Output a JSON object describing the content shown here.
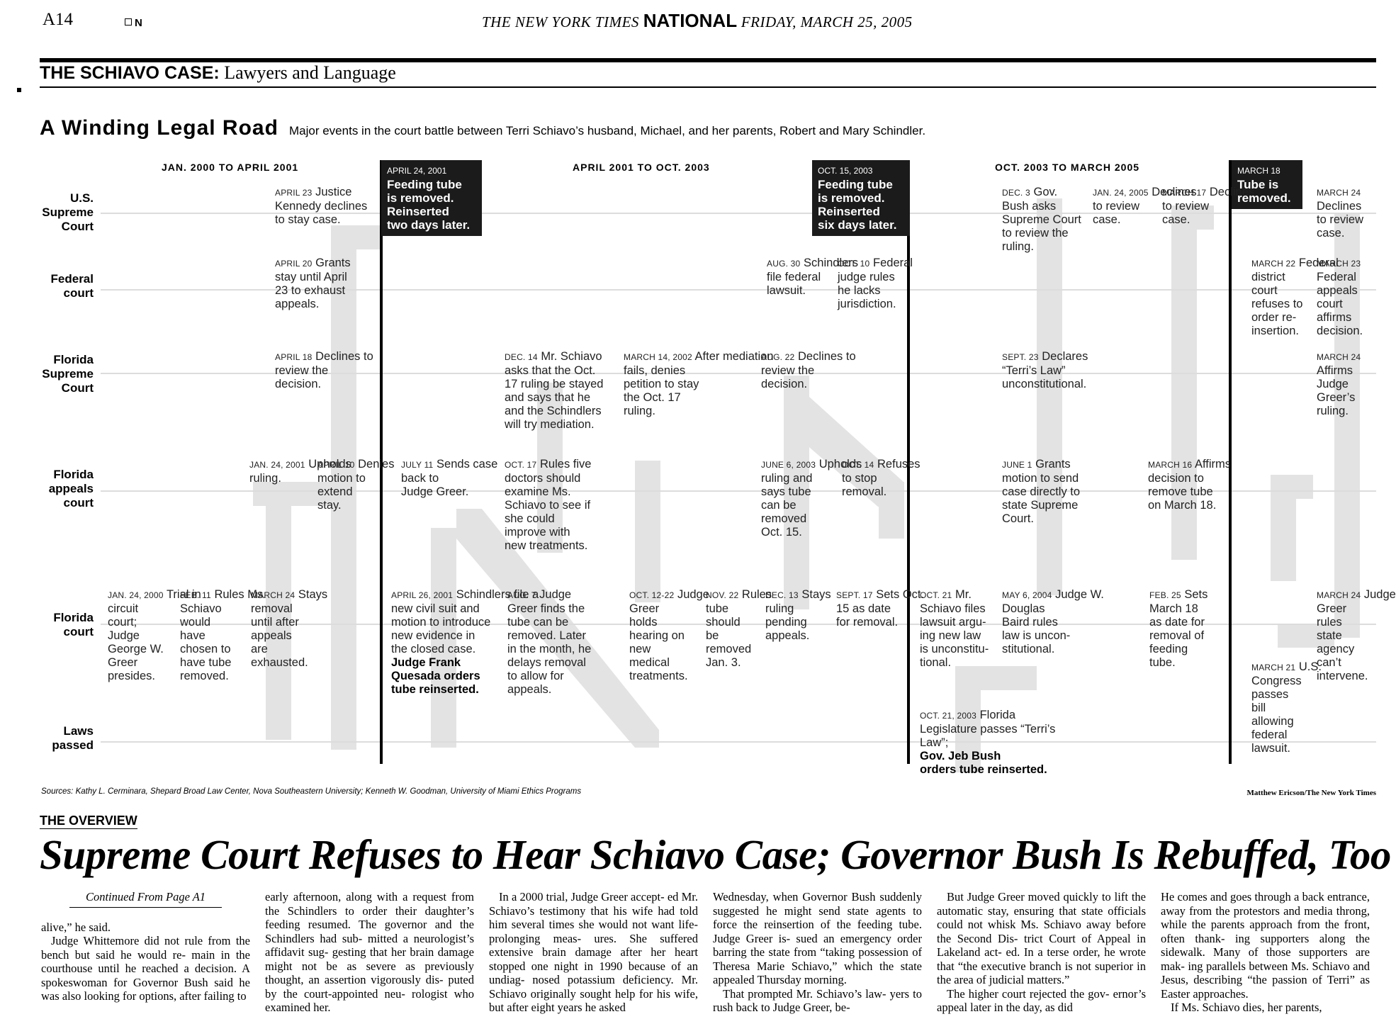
{
  "header": {
    "page": "A14",
    "edition": "N",
    "masthead_pre": "THE NEW YORK TIMES",
    "masthead_section": "NATIONAL",
    "masthead_date": "FRIDAY, MARCH 25, 2005"
  },
  "section": {
    "kicker": "THE SCHIAVO CASE:",
    "title": "Lawyers and Language"
  },
  "graphic": {
    "title": "A Winding Legal Road",
    "subtitle": "Major events in the court battle between Terri Schiavo’s husband, Michael, and her parents, Robert and Mary Schindler.",
    "periods": [
      "JAN. 2000 TO APRIL 2001",
      "APRIL 2001 TO OCT. 2003",
      "OCT. 2003 TO MARCH 2005"
    ],
    "rows": [
      [
        "U.S.",
        "Supreme",
        "Court"
      ],
      [
        "Federal",
        "court"
      ],
      [
        "Florida",
        "Supreme",
        "Court"
      ],
      [
        "Florida",
        "appeals",
        "court"
      ],
      [
        "Florida",
        "court"
      ],
      [
        "Laws",
        "passed"
      ]
    ],
    "callouts": [
      {
        "date": "APRIL 24, 2001",
        "text": [
          "Feeding tube",
          "is removed.",
          "Reinserted",
          "two days later."
        ]
      },
      {
        "date": "OCT. 15, 2003",
        "text": [
          "Feeding tube",
          "is removed.",
          "Reinserted",
          "six days later."
        ]
      },
      {
        "date": "MARCH 18",
        "text": [
          "Tube is",
          "removed."
        ]
      }
    ],
    "events": [
      {
        "date": "APRIL 23",
        "lines": [
          "Justice",
          "Kennedy declines",
          "to stay case."
        ]
      },
      {
        "date": "APRIL 20",
        "lines": [
          "Grants",
          "stay until April",
          "23 to exhaust",
          "appeals."
        ]
      },
      {
        "date": "APRIL 18",
        "lines": [
          "Declines to",
          "review the",
          "decision."
        ]
      },
      {
        "date": "JAN. 24, 2001",
        "lines": [
          "Upholds",
          "ruling."
        ]
      },
      {
        "date": "APRIL 10",
        "lines": [
          "Denies",
          "motion to",
          "extend",
          "stay."
        ]
      },
      {
        "date": "JAN. 24, 2000",
        "lines": [
          "Trial in",
          "circuit",
          "court;",
          "Judge",
          "George W.",
          "Greer",
          "presides."
        ]
      },
      {
        "date": "FEB. 11",
        "lines": [
          "Rules Ms.",
          "Schiavo",
          "would",
          "have",
          "chosen to",
          "have tube",
          "removed."
        ]
      },
      {
        "date": "MARCH 24",
        "lines": [
          "Stays",
          "removal",
          "until after",
          "appeals",
          "are",
          "exhausted."
        ]
      },
      {
        "date": "JULY 11",
        "lines": [
          "Sends case",
          "back to",
          "Judge Greer."
        ]
      },
      {
        "date": "APRIL 26, 2001",
        "lines": [
          "Schindlers file a",
          "new civil suit and",
          "motion to introduce",
          "new evidence in",
          "the closed case."
        ],
        "bold": [
          "Judge Frank",
          "Quesada orders",
          "tube reinserted."
        ]
      },
      {
        "date": "DEC. 14",
        "lines": [
          "Mr. Schiavo",
          "asks that the Oct.",
          "17 ruling be stayed",
          "and says that he",
          "and the Schindlers",
          "will try mediation."
        ]
      },
      {
        "date": "MARCH 14, 2002",
        "lines": [
          "After mediation",
          "fails, denies",
          "petition to stay",
          "the Oct. 17",
          "ruling."
        ]
      },
      {
        "date": "OCT. 17",
        "lines": [
          "Rules five",
          "doctors should",
          "examine Ms.",
          "Schiavo to see if",
          "she could",
          "improve with",
          "new treatments."
        ]
      },
      {
        "date": "AUG. 7",
        "lines": [
          "Judge",
          "Greer finds the",
          "tube can be",
          "removed. Later",
          "in the month, he",
          "delays removal",
          "to allow for",
          "appeals."
        ]
      },
      {
        "date": "OCT. 12-22",
        "lines": [
          "Judge",
          "Greer",
          "holds",
          "hearing on",
          "new",
          "medical",
          "treatments."
        ]
      },
      {
        "date": "NOV. 22",
        "lines": [
          "Rules",
          "tube",
          "should",
          "be",
          "removed",
          "Jan. 3."
        ]
      },
      {
        "date": "AUG. 30",
        "lines": [
          "Schindlers",
          "file federal",
          "lawsuit."
        ]
      },
      {
        "date": "OCT. 10",
        "lines": [
          "Federal",
          "judge rules",
          "he lacks",
          "jurisdiction."
        ]
      },
      {
        "date": "AUG. 22",
        "lines": [
          "Declines to",
          "review the",
          "decision."
        ]
      },
      {
        "date": "JUNE 6, 2003",
        "lines": [
          "Upholds",
          "ruling and",
          "says tube",
          "can be",
          "removed",
          "Oct. 15."
        ]
      },
      {
        "date": "OCT. 14",
        "lines": [
          "Refuses",
          "to stop",
          "removal."
        ]
      },
      {
        "date": "DEC. 13",
        "lines": [
          "Stays",
          "ruling",
          "pending",
          "appeals."
        ]
      },
      {
        "date": "SEPT. 17",
        "lines": [
          "Sets Oct.",
          "15 as date",
          "for removal."
        ]
      },
      {
        "date": "DEC. 3",
        "lines": [
          "Gov.",
          "Bush asks",
          "Supreme Court",
          "to review the",
          "ruling."
        ]
      },
      {
        "date": "JAN. 24, 2005",
        "lines": [
          "Declines",
          "to review",
          "case."
        ]
      },
      {
        "date": "MARCH 17",
        "lines": [
          "Declines",
          "to review",
          "case."
        ]
      },
      {
        "date": "SEPT. 23",
        "lines": [
          "Declares",
          "“Terri’s Law”",
          "unconstitutional."
        ]
      },
      {
        "date": "JUNE 1",
        "lines": [
          "Grants",
          "motion to send",
          "case directly to",
          "state Supreme",
          "Court."
        ]
      },
      {
        "date": "MARCH 16",
        "lines": [
          "Affirms",
          "decision to",
          "remove tube",
          "on March 18."
        ]
      },
      {
        "date": "OCT. 21",
        "lines": [
          "Mr.",
          "Schiavo files",
          "lawsuit argu-",
          "ing new law",
          "is unconstitu-",
          "tional."
        ]
      },
      {
        "date": "MAY 6, 2004",
        "lines": [
          "Judge W.",
          "Douglas",
          "Baird rules",
          "law is uncon-",
          "stitutional."
        ]
      },
      {
        "date": "FEB. 25",
        "lines": [
          "Sets",
          "March 18",
          "as date for",
          "removal of",
          "feeding",
          "tube."
        ]
      },
      {
        "date": "OCT. 21, 2003",
        "lines": [
          "Florida",
          "Legislature passes “Terri’s",
          "Law”;"
        ],
        "bold": [
          "Gov. Jeb Bush",
          "orders tube reinserted."
        ]
      },
      {
        "date": "MARCH 22",
        "lines": [
          "Federal",
          "district",
          "court",
          "refuses to",
          "order re-",
          "insertion."
        ]
      },
      {
        "date": "MARCH 21",
        "lines": [
          "U.S.",
          "Congress",
          "passes",
          "bill",
          "allowing",
          "federal",
          "lawsuit."
        ]
      },
      {
        "date": "MARCH 24",
        "lines": [
          "Declines",
          "to review",
          "case."
        ]
      },
      {
        "date": "MARCH 23",
        "lines": [
          "Federal",
          "appeals",
          "court",
          "affirms",
          "decision."
        ]
      },
      {
        "date": "MARCH 24",
        "lines": [
          "Affirms",
          "Judge",
          "Greer’s",
          "ruling."
        ]
      },
      {
        "date": "MARCH 24",
        "lines": [
          "Judge",
          "Greer",
          "rules",
          "state",
          "agency",
          "can’t",
          "intervene."
        ]
      }
    ],
    "letters": "FLIP",
    "sources": "Sources: Kathy L. Cerminara, Shepard Broad Law Center, Nova Southeastern University; Kenneth W. Goodman, University of Miami Ethics Programs",
    "credit": "Matthew Ericson/The New York Times"
  },
  "article": {
    "kicker": "THE OVERVIEW",
    "headline": "Supreme Court Refuses to Hear Schiavo Case; Governor Bush Is Rebuffed, Too",
    "continued": "Continued From Page A1",
    "columns": [
      [
        "alive,” he said.",
        "Judge Whittemore did not rule from the bench but said he would re- main in the courthouse until he reached a decision. A spokeswoman for Governor Bush said he was also looking for options, after failing to"
      ],
      [
        "early afternoon, along with a request from the Schindlers to order their daughter’s feeding resumed. The governor and the Schindlers had sub- mitted a neurologist’s affidavit sug- gesting that her brain damage might not be as severe as previously thought, an assertion vigorously dis- puted by the court-appointed neu- rologist who examined her."
      ],
      [
        "In a 2000 trial, Judge Greer accept- ed Mr. Schiavo’s testimony that his wife had told him several times she would not want life-prolonging meas- ures. She suffered extensive brain damage after her heart stopped one night in 1990 because of an undiag- nosed potassium deficiency. Mr. Schiavo originally sought help for his wife, but after eight years he asked"
      ],
      [
        "Wednesday, when Governor Bush suddenly suggested he might send state agents to force the reinsertion of the feeding tube. Judge Greer is- sued an emergency order barring the state from “taking possession of Theresa Marie Schiavo,” which the state appealed Thursday morning.",
        "That prompted Mr. Schiavo’s law- yers to rush back to Judge Greer, be-"
      ],
      [
        "But Judge Greer moved quickly to lift the automatic stay, ensuring that state officials could not whisk Ms. Schiavo away before the Second Dis- trict Court of Appeal in Lakeland act- ed. In a terse order, he wrote that “the executive branch is not superior in the area of judicial matters.”",
        "The higher court rejected the gov- ernor’s appeal later in the day, as did"
      ],
      [
        "He comes and goes through a back entrance, away from the protestors and media throng, while the parents approach from the front, often thank- ing supporters along the sidewalk. Many of those supporters are mak- ing parallels between Ms. Schiavo and Jesus, describing “the passion of Terri” as Easter approaches.",
        "If Ms. Schiavo dies, her parents,"
      ]
    ]
  }
}
